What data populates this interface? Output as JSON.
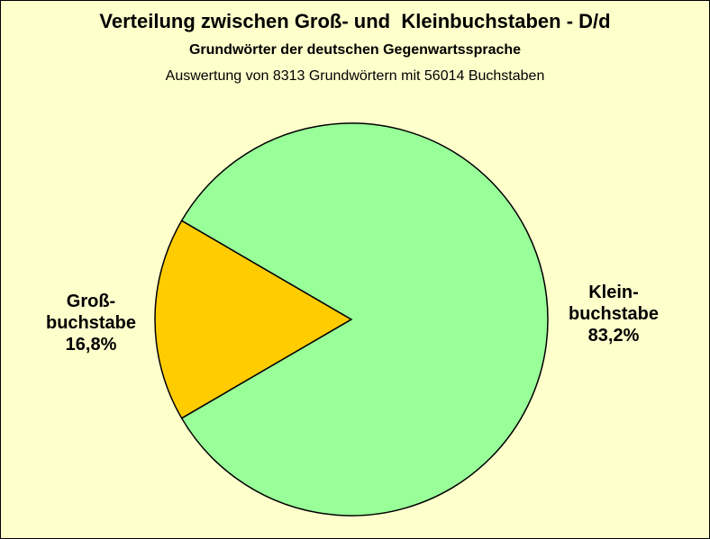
{
  "chart_data": {
    "type": "pie",
    "title": "Verteilung zwischen Groß- und  Kleinbuchstaben - D/d",
    "subtitle": "Grundwörter der deutschen Gegenwartssprache",
    "note": "Auswertung von 8313 Grundwörtern mit 56014 Buchstaben",
    "slices": [
      {
        "label_lines": [
          "Groß-",
          "buchstabe",
          "16,8%"
        ],
        "value": 16.8,
        "color": "#FFCC00"
      },
      {
        "label_lines": [
          "Klein-",
          "buchstabe",
          "83,2%"
        ],
        "value": 83.2,
        "color": "#99FF99"
      }
    ]
  },
  "colors": {
    "background": "#FFFFCC",
    "outline": "#000000"
  }
}
